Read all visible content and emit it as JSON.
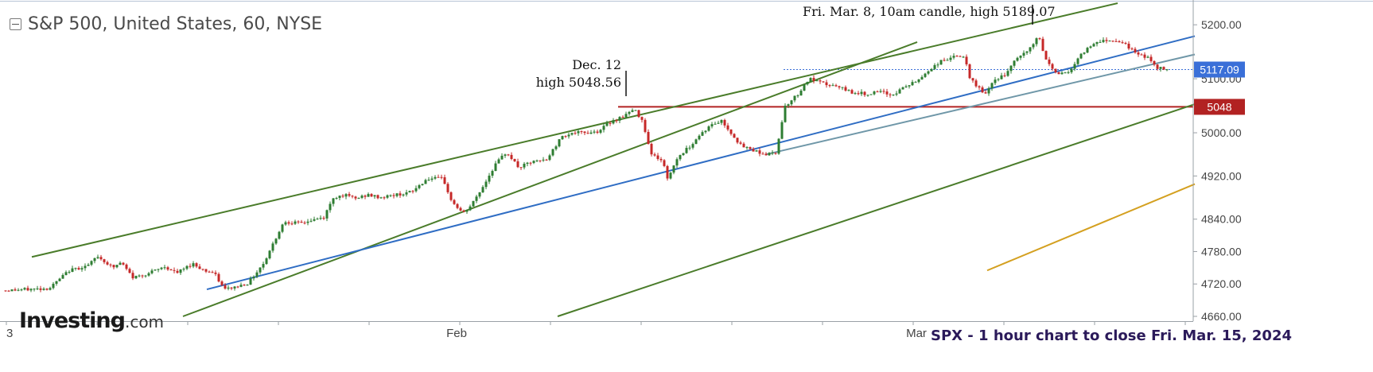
{
  "header": {
    "title": "S&P 500, United States, 60, NYSE"
  },
  "logo": {
    "main": "Investing",
    "suffix": ".com"
  },
  "caption": "SPX - 1 hour chart to close Fri. Mar. 15, 2024",
  "annotations": {
    "dec12_line1": "Dec. 12",
    "dec12_line2": "high 5048.56",
    "mar8": "Fri. Mar. 8, 10am candle, high 5189.07"
  },
  "colors": {
    "up_candle": "#2e7d32",
    "down_candle": "#c62828",
    "channel_green": "#4a7c2a",
    "trend_blue": "#2f6dc4",
    "trend_steel": "#6f97a8",
    "support_red": "#b22222",
    "orange_line": "#d4a020",
    "last_price_badge": "#3a6fd8",
    "level_badge": "#b22222"
  },
  "chart_data": {
    "type": "candlestick",
    "symbol": "S&P 500",
    "timeframe": "60",
    "ylim": [
      4660,
      5240
    ],
    "yticks": [
      "5200.00",
      "5117.09",
      "5100.00",
      "5048",
      "5000.00",
      "4920.00",
      "4840.00",
      "4780.00",
      "4720.00",
      "4660.00"
    ],
    "ytick_values": [
      5200,
      5100,
      5000,
      4920,
      4840,
      4780,
      4720,
      4660
    ],
    "xticks": [
      "3",
      "Feb",
      "Mar"
    ],
    "last_price": {
      "label": "5117.09",
      "value": 5117.09
    },
    "horizontal_level": {
      "label": "5048",
      "value": 5048
    },
    "price_path": [
      [
        0,
        4708
      ],
      [
        55,
        4712
      ],
      [
        80,
        4745
      ],
      [
        105,
        4755
      ],
      [
        115,
        4772
      ],
      [
        135,
        4750
      ],
      [
        145,
        4760
      ],
      [
        160,
        4732
      ],
      [
        180,
        4740
      ],
      [
        200,
        4752
      ],
      [
        215,
        4740
      ],
      [
        235,
        4758
      ],
      [
        250,
        4745
      ],
      [
        262,
        4740
      ],
      [
        275,
        4710
      ],
      [
        290,
        4715
      ],
      [
        305,
        4722
      ],
      [
        325,
        4760
      ],
      [
        338,
        4800
      ],
      [
        350,
        4836
      ],
      [
        370,
        4832
      ],
      [
        385,
        4838
      ],
      [
        400,
        4843
      ],
      [
        412,
        4880
      ],
      [
        425,
        4885
      ],
      [
        440,
        4878
      ],
      [
        455,
        4885
      ],
      [
        470,
        4880
      ],
      [
        490,
        4885
      ],
      [
        510,
        4890
      ],
      [
        530,
        4915
      ],
      [
        550,
        4915
      ],
      [
        560,
        4875
      ],
      [
        575,
        4850
      ],
      [
        585,
        4865
      ],
      [
        600,
        4900
      ],
      [
        615,
        4940
      ],
      [
        630,
        4965
      ],
      [
        645,
        4935
      ],
      [
        660,
        4945
      ],
      [
        680,
        4950
      ],
      [
        700,
        4995
      ],
      [
        715,
        5000
      ],
      [
        730,
        5000
      ],
      [
        745,
        5003
      ],
      [
        760,
        5020
      ],
      [
        775,
        5030
      ],
      [
        790,
        5043
      ],
      [
        800,
        5025
      ],
      [
        812,
        4960
      ],
      [
        826,
        4948
      ],
      [
        832,
        4915
      ],
      [
        845,
        4955
      ],
      [
        860,
        4975
      ],
      [
        875,
        5000
      ],
      [
        888,
        5015
      ],
      [
        900,
        5022
      ],
      [
        912,
        5000
      ],
      [
        925,
        4975
      ],
      [
        940,
        4968
      ],
      [
        955,
        4960
      ],
      [
        968,
        4962
      ],
      [
        980,
        5050
      ],
      [
        995,
        5070
      ],
      [
        1010,
        5100
      ],
      [
        1025,
        5092
      ],
      [
        1045,
        5085
      ],
      [
        1065,
        5075
      ],
      [
        1080,
        5072
      ],
      [
        1100,
        5075
      ],
      [
        1115,
        5070
      ],
      [
        1130,
        5085
      ],
      [
        1145,
        5095
      ],
      [
        1160,
        5115
      ],
      [
        1175,
        5132
      ],
      [
        1190,
        5140
      ],
      [
        1205,
        5142
      ],
      [
        1212,
        5100
      ],
      [
        1222,
        5085
      ],
      [
        1232,
        5072
      ],
      [
        1245,
        5100
      ],
      [
        1258,
        5108
      ],
      [
        1272,
        5140
      ],
      [
        1285,
        5150
      ],
      [
        1298,
        5180
      ],
      [
        1308,
        5135
      ],
      [
        1322,
        5108
      ],
      [
        1338,
        5115
      ],
      [
        1355,
        5150
      ],
      [
        1372,
        5170
      ],
      [
        1390,
        5172
      ],
      [
        1405,
        5168
      ],
      [
        1418,
        5150
      ],
      [
        1435,
        5140
      ],
      [
        1448,
        5120
      ],
      [
        1462,
        5117
      ]
    ],
    "trendlines": [
      {
        "name": "upper-channel",
        "from": [
          35,
          4770
        ],
        "to": [
          1400,
          5240
        ],
        "color": "channel_green"
      },
      {
        "name": "steep-channel-upper",
        "from": [
          225,
          4660
        ],
        "to": [
          1148,
          5168
        ],
        "color": "channel_green"
      },
      {
        "name": "lower-channel",
        "from": [
          696,
          4660
        ],
        "to": [
          1497,
          5053
        ],
        "color": "channel_green"
      },
      {
        "name": "blue-trend",
        "from": [
          255,
          4710
        ],
        "to": [
          1497,
          5179
        ],
        "color": "trend_blue"
      },
      {
        "name": "steel-trend",
        "from": [
          958,
          4960
        ],
        "to": [
          1497,
          5145
        ],
        "color": "trend_steel"
      },
      {
        "name": "orange-trend",
        "from": [
          1236,
          4745
        ],
        "to": [
          1497,
          4905
        ],
        "color": "orange_line"
      }
    ]
  }
}
